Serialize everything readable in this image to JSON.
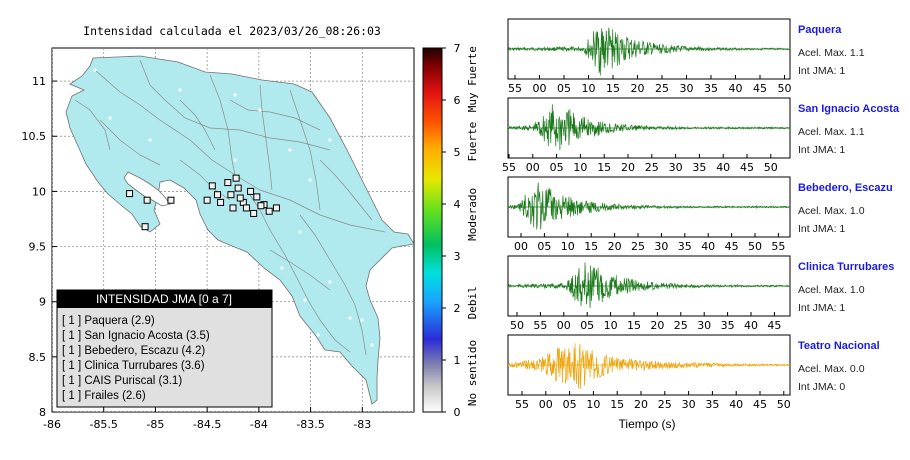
{
  "title": "Intensidad calculada el 2023/03/26_08:26:03",
  "chart_data": [
    {
      "type": "map",
      "x_ticks": [
        "-86",
        "-85.5",
        "-85",
        "-84.5",
        "-84",
        "-83.5",
        "-83"
      ],
      "y_ticks": [
        "11",
        "10.5",
        "10",
        "9.5",
        "9",
        "8.5",
        "8"
      ],
      "xlim": [
        -86.0,
        -82.5
      ],
      "ylim": [
        8.0,
        11.3
      ],
      "grid": true,
      "land_color": "#b0eaee",
      "stations": [
        {
          "lon": -84.08,
          "lat": 10.0,
          "intensity": 0
        },
        {
          "lon": -84.3,
          "lat": 10.08,
          "intensity": 0
        },
        {
          "lon": -84.45,
          "lat": 10.05,
          "intensity": 0
        },
        {
          "lon": -84.22,
          "lat": 10.12,
          "intensity": 0
        },
        {
          "lon": -84.02,
          "lat": 9.95,
          "intensity": 0
        },
        {
          "lon": -83.95,
          "lat": 9.88,
          "intensity": 0
        },
        {
          "lon": -84.15,
          "lat": 9.9,
          "intensity": 0
        },
        {
          "lon": -84.27,
          "lat": 9.97,
          "intensity": 0
        },
        {
          "lon": -84.37,
          "lat": 9.9,
          "intensity": 0
        },
        {
          "lon": -84.2,
          "lat": 10.03,
          "intensity": 0
        },
        {
          "lon": -84.12,
          "lat": 9.85,
          "intensity": 0
        },
        {
          "lon": -84.5,
          "lat": 9.92,
          "intensity": 0
        },
        {
          "lon": -83.9,
          "lat": 9.82,
          "intensity": 0
        },
        {
          "lon": -84.05,
          "lat": 9.8,
          "intensity": 0
        },
        {
          "lon": -84.4,
          "lat": 9.97,
          "intensity": 0
        },
        {
          "lon": -85.25,
          "lat": 9.98,
          "intensity": 0
        },
        {
          "lon": -85.08,
          "lat": 9.92,
          "intensity": 0
        },
        {
          "lon": -85.1,
          "lat": 9.68,
          "intensity": 0
        },
        {
          "lon": -84.85,
          "lat": 9.92,
          "intensity": 0
        },
        {
          "lon": -83.98,
          "lat": 9.87,
          "intensity": 0
        },
        {
          "lon": -83.83,
          "lat": 9.85,
          "intensity": 0
        },
        {
          "lon": -84.25,
          "lat": 9.85,
          "intensity": 0
        },
        {
          "lon": -84.18,
          "lat": 9.94,
          "intensity": 0
        }
      ]
    },
    {
      "type": "colorbar",
      "ticks": [
        "0",
        "1",
        "2",
        "3",
        "4",
        "5",
        "6",
        "7"
      ],
      "range": [
        0,
        7
      ],
      "category_labels": [
        "No sentido",
        "Debil",
        "Moderado",
        "Fuerte",
        "Muy Fuerte"
      ]
    },
    {
      "type": "line",
      "xlabel": "Tiempo (s)",
      "traces": [
        {
          "name": "Paquera",
          "accel": "Acel. Max. 1.1",
          "int": "Int JMA: 1",
          "ticks": [
            "55",
            "00",
            "05",
            "10",
            "15",
            "20",
            "25",
            "30",
            "35",
            "40",
            "45",
            "50"
          ],
          "first_tick_x": 515,
          "tick_spacing": 24.5,
          "color": "#1a7a1a",
          "burst_start": 0.26,
          "burst_peak": 0.33,
          "amp": 1.0,
          "pre": 0.08
        },
        {
          "name": "San Ignacio Acosta",
          "accel": "Acel. Max. 1.1",
          "int": "Int JMA: 1",
          "ticks": [
            "55",
            "00",
            "05",
            "10",
            "15",
            "20",
            "25",
            "30",
            "35",
            "40",
            "45",
            "50"
          ],
          "first_tick_x": 509,
          "tick_spacing": 23.8,
          "color": "#1a7a1a",
          "burst_start": 0.08,
          "burst_peak": 0.17,
          "amp": 1.0,
          "pre": 0.12
        },
        {
          "name": "Bebedero, Escazu",
          "accel": "Acel. Max. 1.0",
          "int": "Int JMA: 1",
          "ticks": [
            "00",
            "05",
            "10",
            "15",
            "20",
            "25",
            "30",
            "35",
            "40",
            "45",
            "50",
            "55"
          ],
          "first_tick_x": 521,
          "tick_spacing": 23.4,
          "color": "#1a7a1a",
          "burst_start": 0.03,
          "burst_peak": 0.1,
          "amp": 1.0,
          "pre": 0.08
        },
        {
          "name": "Clinica Turrubares",
          "accel": "Acel. Max. 1.0",
          "int": "Int JMA: 1",
          "ticks": [
            "50",
            "55",
            "00",
            "05",
            "10",
            "15",
            "20",
            "25",
            "30",
            "35",
            "40",
            "45"
          ],
          "first_tick_x": 517,
          "tick_spacing": 23.4,
          "color": "#1a7a1a",
          "burst_start": 0.2,
          "burst_peak": 0.27,
          "amp": 1.0,
          "pre": 0.1
        },
        {
          "name": "Teatro Nacional",
          "accel": "Acel. Max. 0.0",
          "int": "Int JMA: 0",
          "ticks": [
            "55",
            "00",
            "05",
            "10",
            "15",
            "20",
            "25",
            "30",
            "35",
            "40",
            "45",
            "50"
          ],
          "first_tick_x": 522,
          "tick_spacing": 23.8,
          "color": "#f0a40a",
          "burst_start": 0.1,
          "burst_peak": 0.24,
          "amp": 1.0,
          "pre": 0.45
        }
      ]
    }
  ],
  "legend": {
    "header": "INTENSIDAD JMA [0 a 7]",
    "items": [
      "[ 1 ]  Paquera (2.9)",
      "[ 1 ]  San Ignacio Acosta (3.5)",
      "[ 1 ]  Bebedero, Escazu (4.2)",
      "[ 1 ]  Clinica Turrubares (3.6)",
      "[ 1 ]  CAIS Puriscal (3.1)",
      "[ 1 ]  Frailes (2.6)"
    ]
  }
}
